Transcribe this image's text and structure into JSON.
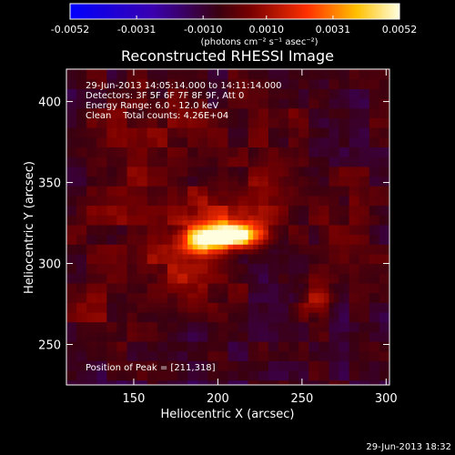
{
  "chart_data": {
    "type": "heatmap",
    "title": "Reconstructed RHESSI Image",
    "xlabel": "Heliocentric X (arcsec)",
    "ylabel": "Heliocentric Y (arcsec)",
    "xlim": [
      110,
      302
    ],
    "ylim": [
      225,
      420
    ],
    "x_ticks": [
      "150",
      "200",
      "250",
      "300"
    ],
    "y_ticks": [
      "250",
      "300",
      "350",
      "400"
    ],
    "x_tick_values": [
      150,
      200,
      250,
      300
    ],
    "y_tick_values": [
      250,
      300,
      350,
      400
    ],
    "colorbar": {
      "ticks": [
        "-0.0052",
        "-0.0031",
        "-0.0010",
        "0.0010",
        "0.0031",
        "0.0052"
      ],
      "tick_values": [
        -0.0052,
        -0.0031,
        -0.001,
        0.001,
        0.0031,
        0.0052
      ],
      "range": [
        -0.0052,
        0.0052
      ],
      "units_label": "(photons cm⁻² s⁻¹ asec⁻²)"
    },
    "annotations": [
      "29-Jun-2013 14:05:14.000 to 14:11:14.000",
      "Detectors: 3F 5F 6F 7F 8F 9F, Att 0",
      "Energy Range: 6.0 - 12.0 keV",
      "Clean    Total counts: 4.26E+04"
    ],
    "peak_label": "Position of Peak = [211,318]",
    "peak": [
      211,
      318
    ],
    "grid": false,
    "sources": [
      {
        "x": 211,
        "y": 318,
        "sx": 11,
        "sy": 5,
        "amp": 1.0
      },
      {
        "x": 192,
        "y": 315,
        "sx": 10,
        "sy": 6,
        "amp": 0.82
      },
      {
        "x": 205,
        "y": 332,
        "sx": 18,
        "sy": 14,
        "amp": 0.28
      },
      {
        "x": 232,
        "y": 350,
        "sx": 12,
        "sy": 18,
        "amp": 0.22
      },
      {
        "x": 185,
        "y": 293,
        "sx": 22,
        "sy": 14,
        "amp": 0.25
      },
      {
        "x": 258,
        "y": 278,
        "sx": 8,
        "sy": 8,
        "amp": 0.3
      },
      {
        "x": 150,
        "y": 330,
        "sx": 30,
        "sy": 30,
        "amp": 0.16
      },
      {
        "x": 160,
        "y": 390,
        "sx": 25,
        "sy": 22,
        "amp": 0.18
      },
      {
        "x": 270,
        "y": 330,
        "sx": 18,
        "sy": 22,
        "amp": 0.16
      },
      {
        "x": 235,
        "y": 395,
        "sx": 25,
        "sy": 18,
        "amp": 0.12
      },
      {
        "x": 130,
        "y": 265,
        "sx": 18,
        "sy": 18,
        "amp": 0.14
      }
    ]
  },
  "footer": {
    "timestamp": "29-Jun-2013 18:32"
  }
}
